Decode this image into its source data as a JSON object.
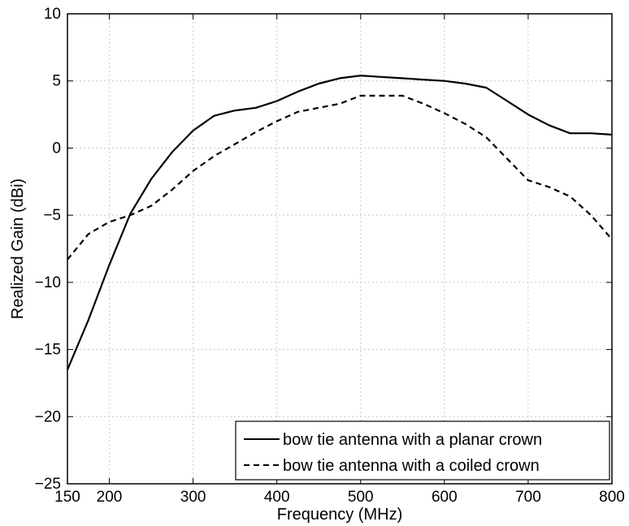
{
  "chart_data": {
    "type": "line",
    "title": "",
    "xlabel": "Frequency (MHz)",
    "ylabel": "Realized Gain (dBi)",
    "xlim": [
      150,
      800
    ],
    "ylim": [
      -25,
      10
    ],
    "xticks": [
      150,
      200,
      300,
      400,
      500,
      600,
      700,
      800
    ],
    "yticks": [
      10,
      5,
      0,
      -5,
      -10,
      -15,
      -20,
      -25
    ],
    "xtick_labels": [
      "150",
      "200",
      "300",
      "400",
      "500",
      "600",
      "700",
      "800"
    ],
    "ytick_labels": [
      "10",
      "5",
      "0",
      "−5",
      "−10",
      "−15",
      "−20",
      "−25"
    ],
    "grid": true,
    "legend_position": "bottom-right",
    "series": [
      {
        "name": "bow tie antenna with a planar crown",
        "style": "solid",
        "color": "#000000",
        "x": [
          150,
          175,
          200,
          225,
          250,
          275,
          300,
          325,
          350,
          375,
          400,
          425,
          450,
          475,
          500,
          525,
          550,
          575,
          600,
          625,
          650,
          675,
          700,
          725,
          750,
          775,
          800
        ],
        "y": [
          -16.5,
          -12.8,
          -8.7,
          -4.9,
          -2.3,
          -0.3,
          1.3,
          2.4,
          2.8,
          3.0,
          3.5,
          4.2,
          4.8,
          5.2,
          5.4,
          5.3,
          5.2,
          5.1,
          5.0,
          4.8,
          4.5,
          3.5,
          2.5,
          1.7,
          1.1,
          1.1,
          1.0
        ]
      },
      {
        "name": "bow tie antenna with a coiled crown",
        "style": "dashed",
        "color": "#000000",
        "x": [
          150,
          175,
          200,
          225,
          250,
          275,
          300,
          325,
          350,
          375,
          400,
          425,
          450,
          475,
          500,
          525,
          550,
          575,
          600,
          625,
          650,
          675,
          700,
          725,
          750,
          775,
          800
        ],
        "y": [
          -8.3,
          -6.4,
          -5.5,
          -5.0,
          -4.3,
          -3.1,
          -1.7,
          -0.6,
          0.3,
          1.2,
          2.0,
          2.7,
          3.0,
          3.3,
          3.9,
          3.9,
          3.9,
          3.3,
          2.6,
          1.8,
          0.8,
          -0.8,
          -2.4,
          -2.9,
          -3.6,
          -5.0,
          -6.8
        ]
      }
    ]
  }
}
